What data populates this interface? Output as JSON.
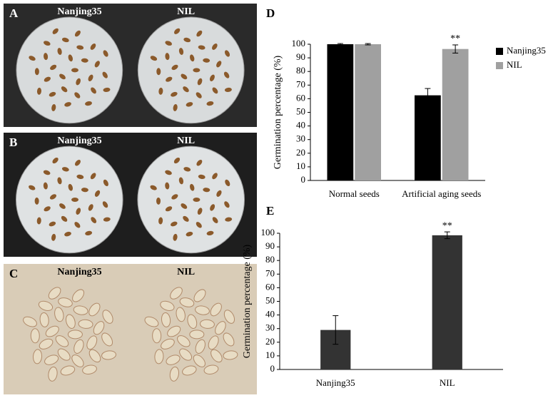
{
  "photos": [
    {
      "label": "A",
      "left": "Nanjing35",
      "right": "NIL"
    },
    {
      "label": "B",
      "left": "Nanjing35",
      "right": "NIL"
    },
    {
      "label": "C",
      "left": "Nanjing35",
      "right": "NIL"
    }
  ],
  "chart_data": [
    {
      "type": "bar",
      "panel": "D",
      "ylabel": "Germination percentage (%)",
      "categories": [
        "Normal seeds",
        "Artificial aging seeds"
      ],
      "series": [
        {
          "name": "Nanjing35",
          "color": "#000000",
          "values": [
            100,
            62.5
          ],
          "errors": [
            0.5,
            5
          ]
        },
        {
          "name": "NIL",
          "color": "#a0a0a0",
          "values": [
            100,
            96.5
          ],
          "errors": [
            0.5,
            3
          ],
          "annotations": [
            null,
            "**"
          ]
        }
      ],
      "ylim": [
        0,
        100
      ],
      "yticks": [
        0,
        10,
        20,
        30,
        40,
        50,
        60,
        70,
        80,
        90,
        100
      ],
      "legend": "right"
    },
    {
      "type": "bar",
      "panel": "E",
      "ylabel": "Germination percentage (%)",
      "categories": [
        "Nanjing35",
        "NIL"
      ],
      "values": [
        29,
        98.5
      ],
      "errors": [
        10.5,
        2.5
      ],
      "annotations": [
        null,
        "**"
      ],
      "color": "#333333",
      "ylim": [
        0,
        100
      ],
      "yticks": [
        0,
        10,
        20,
        30,
        40,
        50,
        60,
        70,
        80,
        90,
        100
      ]
    }
  ]
}
